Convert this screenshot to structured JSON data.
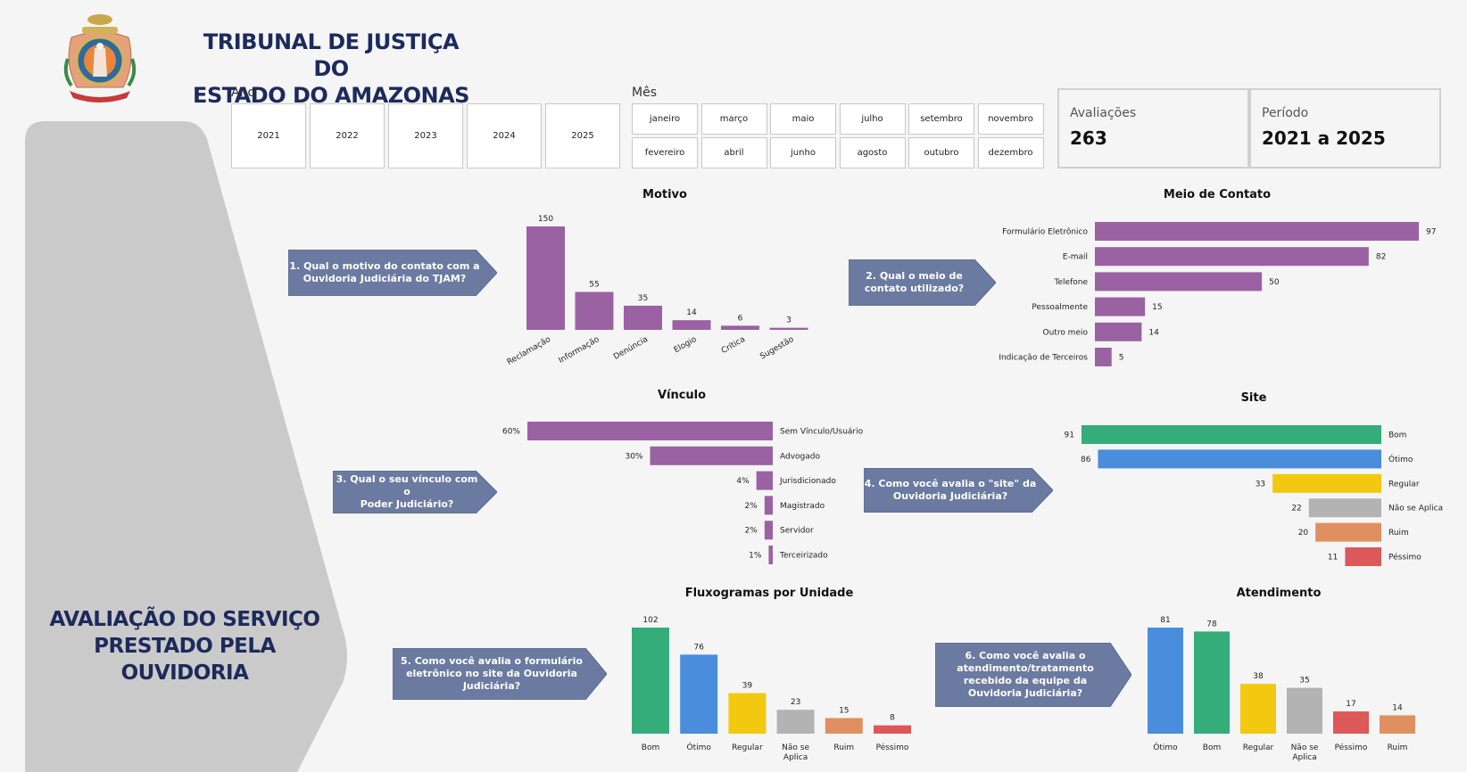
{
  "header": {
    "title_line1": "TRIBUNAL DE JUSTIÇA DO",
    "title_line2": "ESTADO DO AMAZONAS"
  },
  "left": {
    "line1": "AVALIAÇÃO DO SERVIÇO",
    "line2": "PRESTADO PELA",
    "line3": "OUVIDORIA"
  },
  "filters": {
    "ano_label": "Ano",
    "anos": [
      "2021",
      "2022",
      "2023",
      "2024",
      "2025"
    ],
    "mes_label": "Mês",
    "meses_row1": [
      "janeiro",
      "março",
      "maio",
      "julho",
      "setembro",
      "novembro"
    ],
    "meses_row2": [
      "fevereiro",
      "abril",
      "junho",
      "agosto",
      "outubro",
      "dezembro"
    ]
  },
  "cards": {
    "avaliacoes_label": "Avaliações",
    "avaliacoes_value": "263",
    "periodo_label": "Período",
    "periodo_value": "2021 a 2025"
  },
  "questions": {
    "q1": [
      "1. Qual o motivo do contato com a",
      "Ouvidoria Judiciária do TJAM?"
    ],
    "q2": [
      "2. Qual o meio de",
      "contato utilizado?"
    ],
    "q3": [
      "3. Qual o seu vínculo com o",
      "Poder Judiciário?"
    ],
    "q4": [
      "4. Como você avalia o \"site\" da",
      "Ouvidoria Judiciária?"
    ],
    "q5": [
      "5. Como você avalia o formulário",
      "eletrônico no site da Ouvidoria",
      "Judiciária?"
    ],
    "q6": [
      "6. Como você avalia o",
      "atendimento/tratamento",
      "recebido da equipe da",
      "Ouvidoria Judiciária?"
    ]
  },
  "colors": {
    "purple": "#9a62a2",
    "green": "#34ad7a",
    "blue": "#4a8ddc",
    "yellow": "#f2c811",
    "gray": "#b3b3b3",
    "orange": "#e09060",
    "red": "#dd5858",
    "callout": "#6b7aa0",
    "navy": "#1c2a5c"
  },
  "chart_data": [
    {
      "id": "motivo",
      "type": "bar",
      "title": "Motivo",
      "categories": [
        "Reclamação",
        "Informação",
        "Denúncia",
        "Elogio",
        "Crítica",
        "Sugestão"
      ],
      "values": [
        150,
        55,
        35,
        14,
        6,
        3
      ],
      "orientation": "vertical"
    },
    {
      "id": "meio",
      "type": "bar",
      "title": "Meio de Contato",
      "categories": [
        "Formulário Eletrônico",
        "E-mail",
        "Telefone",
        "Pessoalmente",
        "Outro meio",
        "Indicação de Terceiros"
      ],
      "values": [
        97,
        82,
        50,
        15,
        14,
        5
      ],
      "orientation": "horizontal"
    },
    {
      "id": "vinculo",
      "type": "bar",
      "title": "Vínculo",
      "categories": [
        "Sem Vínculo/Usuário",
        "Advogado",
        "Jurisdicionado",
        "Magistrado",
        "Servidor",
        "Terceirizado"
      ],
      "values": [
        60,
        30,
        4,
        2,
        2,
        1
      ],
      "value_labels": [
        "60%",
        "30%",
        "4%",
        "2%",
        "2%",
        "1%"
      ],
      "orientation": "horizontal-right-aligned"
    },
    {
      "id": "site",
      "type": "bar",
      "title": "Site",
      "categories": [
        "Bom",
        "Ótimo",
        "Regular",
        "Não se Aplica",
        "Ruim",
        "Péssimo"
      ],
      "values": [
        91,
        86,
        33,
        22,
        20,
        11
      ],
      "colors": [
        "#34ad7a",
        "#4a8ddc",
        "#f2c811",
        "#b3b3b3",
        "#e09060",
        "#dd5858"
      ],
      "orientation": "horizontal-right-aligned"
    },
    {
      "id": "fluxo",
      "type": "bar",
      "title": "Fluxogramas por Unidade",
      "categories": [
        "Bom",
        "Ótimo",
        "Regular",
        "Não se Aplica",
        "Ruim",
        "Péssimo"
      ],
      "values": [
        102,
        76,
        39,
        23,
        15,
        8
      ],
      "colors": [
        "#34ad7a",
        "#4a8ddc",
        "#f2c811",
        "#b3b3b3",
        "#e09060",
        "#dd5858"
      ],
      "orientation": "vertical"
    },
    {
      "id": "atend",
      "type": "bar",
      "title": "Atendimento",
      "categories": [
        "Ótimo",
        "Bom",
        "Regular",
        "Não se Aplica",
        "Péssimo",
        "Ruim"
      ],
      "values": [
        81,
        78,
        38,
        35,
        17,
        14
      ],
      "colors": [
        "#4a8ddc",
        "#34ad7a",
        "#f2c811",
        "#b3b3b3",
        "#dd5858",
        "#e09060"
      ],
      "orientation": "vertical"
    }
  ]
}
